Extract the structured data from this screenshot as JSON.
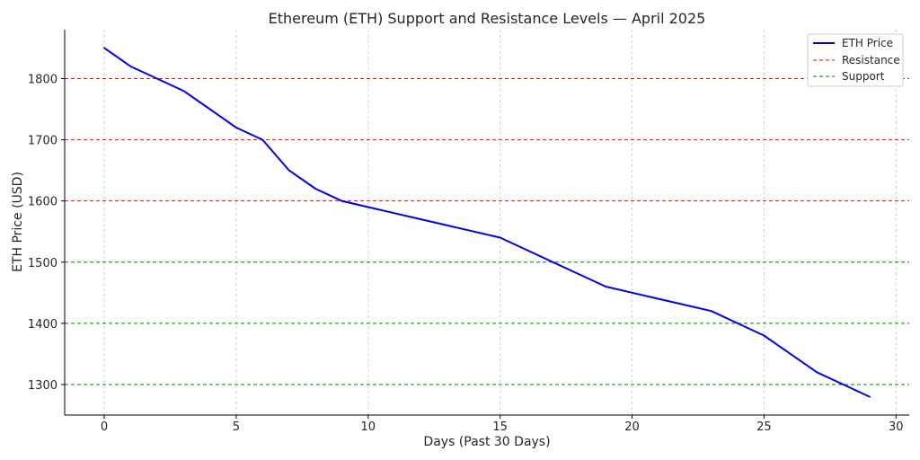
{
  "chart_data": {
    "type": "line",
    "title": "Ethereum (ETH) Support and Resistance Levels — April 2025",
    "xlabel": "Days (Past 30 Days)",
    "ylabel": "ETH Price (USD)",
    "xlim": [
      -1.5,
      30.5
    ],
    "ylim": [
      1250,
      1880
    ],
    "xticks": [
      0,
      5,
      10,
      15,
      20,
      25,
      30
    ],
    "yticks": [
      1300,
      1400,
      1500,
      1600,
      1700,
      1800
    ],
    "grid": "vertical dashed",
    "legend_position": "top-right",
    "series": [
      {
        "name": "ETH Price",
        "color": "#0000e6",
        "style": "solid",
        "x": [
          0,
          1,
          2,
          3,
          4,
          5,
          6,
          7,
          8,
          9,
          10,
          11,
          12,
          13,
          14,
          15,
          16,
          17,
          18,
          19,
          20,
          21,
          22,
          23,
          24,
          25,
          26,
          27,
          28,
          29
        ],
        "y": [
          1850,
          1820,
          1800,
          1780,
          1750,
          1720,
          1700,
          1650,
          1620,
          1600,
          1590,
          1580,
          1570,
          1560,
          1550,
          1540,
          1520,
          1500,
          1480,
          1460,
          1450,
          1440,
          1430,
          1420,
          1400,
          1380,
          1350,
          1320,
          1300,
          1280
        ]
      }
    ],
    "reference_lines": [
      {
        "group": "Resistance",
        "value": 1800,
        "color": "#ff0000"
      },
      {
        "group": "Resistance",
        "value": 1700,
        "color": "#ff0000"
      },
      {
        "group": "Resistance",
        "value": 1600,
        "color": "#ff0000"
      },
      {
        "group": "Support",
        "value": 1500,
        "color": "#008000"
      },
      {
        "group": "Support",
        "value": 1400,
        "color": "#008000"
      },
      {
        "group": "Support",
        "value": 1300,
        "color": "#008000"
      }
    ],
    "legend": [
      {
        "label": "ETH Price",
        "color": "#0000e6",
        "style": "solid"
      },
      {
        "label": "Resistance",
        "color": "#ff0000",
        "style": "dashed"
      },
      {
        "label": "Support",
        "color": "#008000",
        "style": "dashed"
      }
    ]
  }
}
